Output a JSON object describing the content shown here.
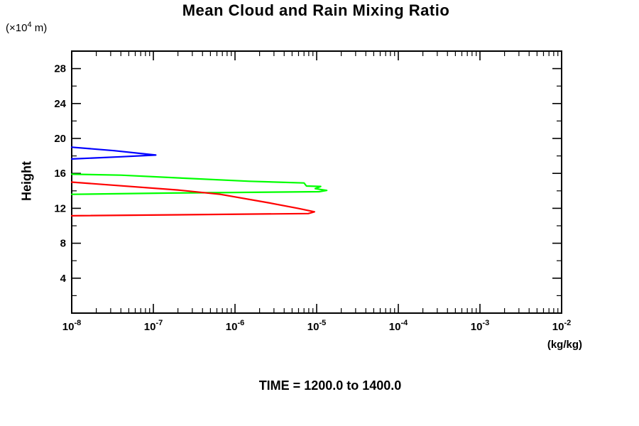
{
  "chart_data": {
    "type": "line",
    "title": "Mean Cloud and Rain Mixing Ratio",
    "caption": "TIME = 1200.0 to 1400.0",
    "ylabel": "Height",
    "xlabel": "(kg/kg)",
    "y_unit": {
      "prefix": "(×10",
      "exponent": "4",
      "suffix": " m)"
    },
    "x_axis": {
      "scale": "log10",
      "min": 1e-08,
      "max": 0.01,
      "tick_label_base": "10",
      "tick_exponents": [
        -8,
        -7,
        -6,
        -5,
        -4,
        -3,
        -2
      ],
      "minor_ticks_per_decade": [
        2,
        3,
        4,
        5,
        6,
        7,
        8,
        9
      ]
    },
    "y_axis": {
      "min": 0,
      "max": 30,
      "major_ticks": [
        4,
        8,
        12,
        16,
        20,
        24,
        28
      ],
      "minor_tick_step": 2
    },
    "grid": "off",
    "legend": "none",
    "frame_color": "#000000",
    "series": [
      {
        "name": "blue",
        "color": "#0000ff",
        "points": [
          [
            1e-08,
            19.0
          ],
          [
            3.3e-08,
            18.6
          ],
          [
            1.07e-07,
            18.1
          ],
          [
            4e-08,
            17.9
          ],
          [
            1e-08,
            17.65
          ]
        ]
      },
      {
        "name": "green",
        "color": "#00ff00",
        "points": [
          [
            1e-08,
            15.9
          ],
          [
            4e-08,
            15.8
          ],
          [
            2.4e-07,
            15.45
          ],
          [
            1.5e-06,
            15.1
          ],
          [
            7e-06,
            14.9
          ],
          [
            7.5e-06,
            14.55
          ],
          [
            1.12e-05,
            14.5
          ],
          [
            9.6e-06,
            14.25
          ],
          [
            1.33e-05,
            14.05
          ],
          [
            1.07e-05,
            13.9
          ],
          [
            1.6e-07,
            13.75
          ],
          [
            1e-08,
            13.6
          ]
        ]
      },
      {
        "name": "red",
        "color": "#ff0000",
        "points": [
          [
            1e-08,
            15.0
          ],
          [
            2e-07,
            14.1
          ],
          [
            6.6e-07,
            13.6
          ],
          [
            2.7e-06,
            12.6
          ],
          [
            5.9e-06,
            12.0
          ],
          [
            9.4e-06,
            11.6
          ],
          [
            7.9e-06,
            11.4
          ],
          [
            1e-08,
            11.15
          ]
        ]
      }
    ]
  }
}
